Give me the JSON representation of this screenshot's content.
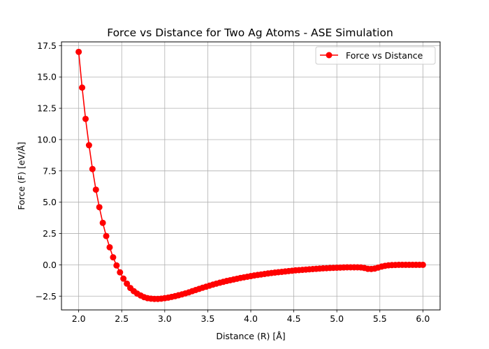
{
  "chart_data": {
    "type": "line",
    "title": "Force vs Distance for Two Ag Atoms - ASE Simulation",
    "xlabel": "Distance (R) [Å]",
    "ylabel": "Force (F) [eV/Å]",
    "xlim": [
      1.8,
      6.2
    ],
    "ylim": [
      -3.6,
      17.8
    ],
    "xticks": [
      2.0,
      2.5,
      3.0,
      3.5,
      4.0,
      4.5,
      5.0,
      5.5,
      6.0
    ],
    "xtick_labels": [
      "2.0",
      "2.5",
      "3.0",
      "3.5",
      "4.0",
      "4.5",
      "5.0",
      "5.5",
      "6.0"
    ],
    "yticks": [
      -2.5,
      0.0,
      2.5,
      5.0,
      7.5,
      10.0,
      12.5,
      15.0,
      17.5
    ],
    "ytick_labels": [
      "−2.5",
      "0.0",
      "2.5",
      "5.0",
      "7.5",
      "10.0",
      "12.5",
      "15.0",
      "17.5"
    ],
    "grid": true,
    "legend_position": "upper right",
    "color": "#ff0000",
    "series": [
      {
        "name": "Force vs Distance",
        "x": [
          2.0,
          2.04,
          2.08,
          2.12,
          2.16,
          2.2,
          2.24,
          2.28,
          2.32,
          2.36,
          2.4,
          2.44,
          2.48,
          2.52,
          2.56,
          2.6,
          2.64,
          2.68,
          2.72,
          2.76,
          2.8,
          2.84,
          2.88,
          2.92,
          2.96,
          3.0,
          3.04,
          3.08,
          3.12,
          3.16,
          3.2,
          3.24,
          3.28,
          3.32,
          3.36,
          3.4,
          3.44,
          3.48,
          3.52,
          3.56,
          3.6,
          3.64,
          3.68,
          3.72,
          3.76,
          3.8,
          3.84,
          3.88,
          3.92,
          3.96,
          4.0,
          4.04,
          4.08,
          4.12,
          4.16,
          4.2,
          4.24,
          4.28,
          4.32,
          4.36,
          4.4,
          4.44,
          4.48,
          4.52,
          4.56,
          4.6,
          4.64,
          4.68,
          4.72,
          4.76,
          4.8,
          4.84,
          4.88,
          4.92,
          4.96,
          5.0,
          5.04,
          5.08,
          5.12,
          5.16,
          5.2,
          5.24,
          5.28,
          5.32,
          5.36,
          5.4,
          5.44,
          5.48,
          5.52,
          5.56,
          5.6,
          5.64,
          5.68,
          5.72,
          5.76,
          5.8,
          5.84,
          5.88,
          5.92,
          5.96,
          6.0
        ],
        "y": [
          17.0,
          14.15,
          11.65,
          9.55,
          7.65,
          6.0,
          4.6,
          3.35,
          2.3,
          1.4,
          0.6,
          -0.05,
          -0.6,
          -1.1,
          -1.5,
          -1.85,
          -2.1,
          -2.3,
          -2.45,
          -2.58,
          -2.66,
          -2.7,
          -2.72,
          -2.72,
          -2.7,
          -2.66,
          -2.62,
          -2.56,
          -2.5,
          -2.43,
          -2.36,
          -2.28,
          -2.2,
          -2.1,
          -2.01,
          -1.92,
          -1.83,
          -1.75,
          -1.66,
          -1.58,
          -1.5,
          -1.43,
          -1.36,
          -1.29,
          -1.23,
          -1.17,
          -1.11,
          -1.05,
          -1.0,
          -0.95,
          -0.9,
          -0.85,
          -0.81,
          -0.77,
          -0.73,
          -0.69,
          -0.65,
          -0.62,
          -0.59,
          -0.56,
          -0.53,
          -0.5,
          -0.47,
          -0.44,
          -0.42,
          -0.4,
          -0.38,
          -0.36,
          -0.34,
          -0.32,
          -0.3,
          -0.28,
          -0.27,
          -0.25,
          -0.24,
          -0.23,
          -0.22,
          -0.21,
          -0.2,
          -0.2,
          -0.2,
          -0.2,
          -0.21,
          -0.25,
          -0.32,
          -0.33,
          -0.3,
          -0.22,
          -0.14,
          -0.08,
          -0.04,
          -0.02,
          -0.01,
          0.0,
          0.0,
          0.0,
          0.0,
          0.0,
          0.0,
          0.0,
          0.0
        ]
      }
    ]
  }
}
